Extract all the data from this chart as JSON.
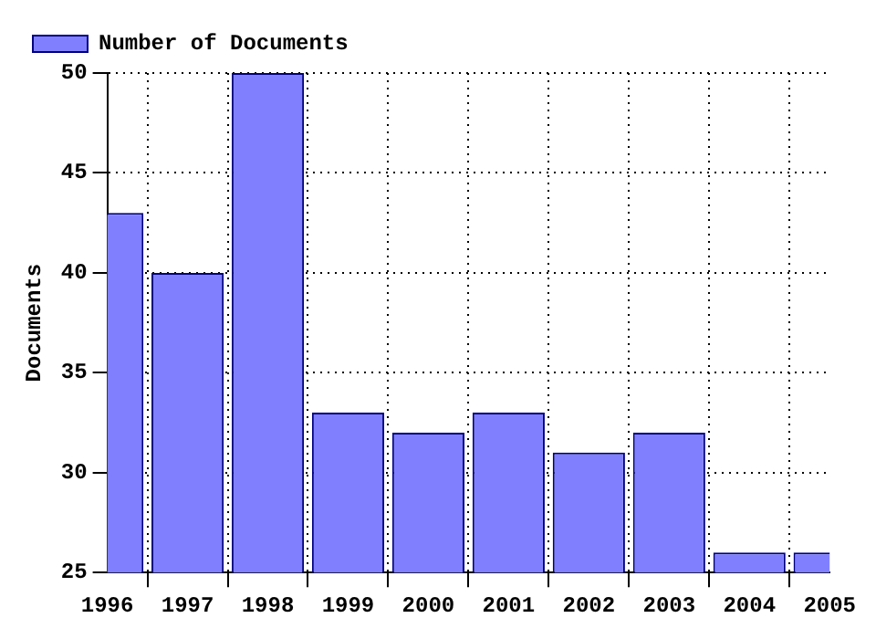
{
  "chart_data": {
    "type": "bar",
    "ylabel": "Documents",
    "x": [
      1996,
      1997,
      1998,
      1999,
      2000,
      2001,
      2002,
      2003,
      2004,
      2005
    ],
    "series": [
      {
        "name": "Number of Documents",
        "color": "#8080ff",
        "values": [
          43,
          40,
          50,
          33,
          32,
          33,
          31,
          32,
          26,
          26
        ]
      }
    ],
    "xlim": [
      1996,
      2005
    ],
    "xticks": [
      1996,
      1997,
      1998,
      1999,
      2000,
      2001,
      2002,
      2003,
      2004,
      2005
    ],
    "ylim": [
      25,
      50
    ],
    "yticks": [
      25,
      30,
      35,
      40,
      45,
      50
    ],
    "grid": true,
    "legend": "top"
  }
}
